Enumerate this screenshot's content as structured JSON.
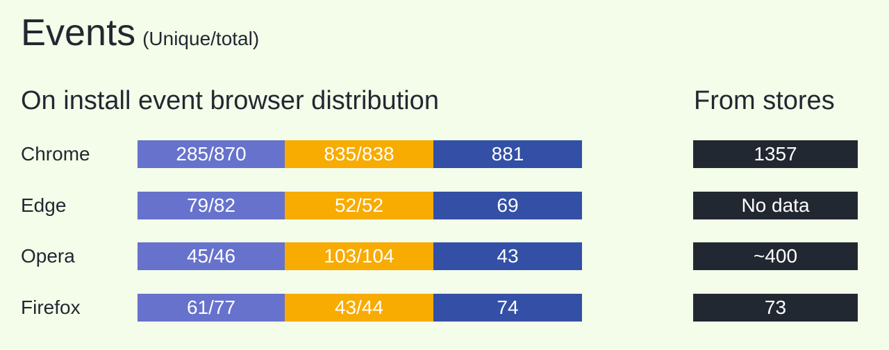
{
  "title": "Events",
  "subtitle": "(Unique/total)",
  "colors": {
    "background": "#f3fde9",
    "segment_1": "#6672cc",
    "segment_2": "#f8ab00",
    "segment_3": "#3350a6",
    "store_box": "#222831"
  },
  "chart_data": {
    "type": "table",
    "title": "On install event browser distribution",
    "side_title": "From stores",
    "rows": [
      {
        "label": "Chrome",
        "segments": [
          "285/870",
          "835/838",
          "881"
        ],
        "from_stores": "1357"
      },
      {
        "label": "Edge",
        "segments": [
          "79/82",
          "52/52",
          "69"
        ],
        "from_stores": "No data"
      },
      {
        "label": "Opera",
        "segments": [
          "45/46",
          "103/104",
          "43"
        ],
        "from_stores": "~400"
      },
      {
        "label": "Firefox",
        "segments": [
          "61/77",
          "43/44",
          "74"
        ],
        "from_stores": "73"
      }
    ]
  }
}
